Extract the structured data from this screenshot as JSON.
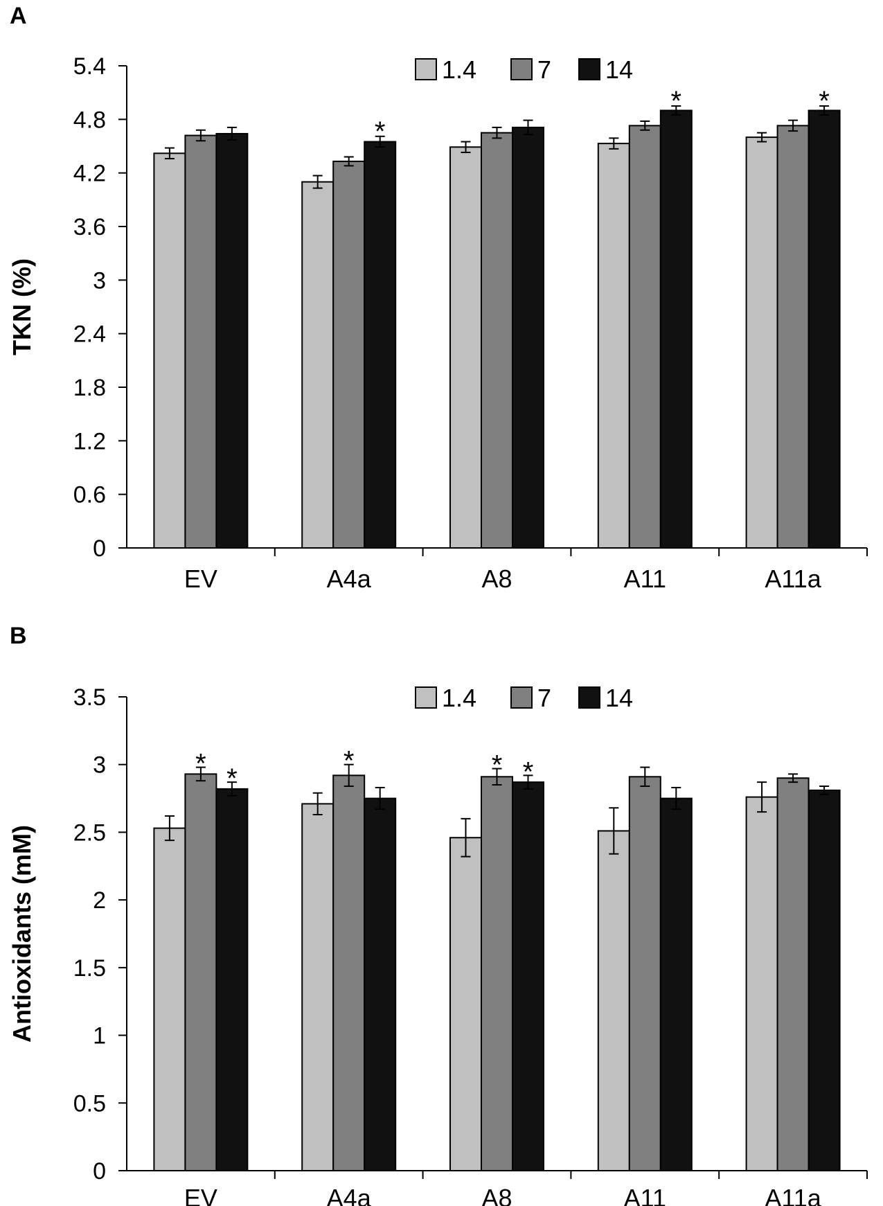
{
  "chart_data": [
    {
      "panel": "A",
      "type": "bar",
      "title": "",
      "xlabel": "",
      "ylabel": "TKN (%)",
      "ylim": [
        0,
        5.4
      ],
      "yticks": [
        "0",
        "0.6",
        "1.2",
        "1.8",
        "2.4",
        "3",
        "3.6",
        "4.2",
        "4.8",
        "5.4"
      ],
      "categories": [
        "EV",
        "A4a",
        "A8",
        "A11",
        "A11a"
      ],
      "legend_position": "top-center",
      "series": [
        {
          "name": "1.4",
          "color": "#c0c0c0",
          "values": [
            4.42,
            4.1,
            4.49,
            4.53,
            4.6
          ],
          "errors": [
            0.06,
            0.07,
            0.06,
            0.06,
            0.05
          ],
          "significant": [
            false,
            false,
            false,
            false,
            false
          ]
        },
        {
          "name": "7",
          "color": "#808080",
          "values": [
            4.62,
            4.33,
            4.65,
            4.73,
            4.73
          ],
          "errors": [
            0.06,
            0.05,
            0.06,
            0.05,
            0.06
          ],
          "significant": [
            false,
            false,
            false,
            false,
            false
          ]
        },
        {
          "name": "14",
          "color": "#111111",
          "values": [
            4.64,
            4.55,
            4.71,
            4.9,
            4.9
          ],
          "errors": [
            0.07,
            0.06,
            0.08,
            0.05,
            0.05
          ],
          "significant": [
            false,
            true,
            false,
            true,
            true
          ]
        }
      ],
      "significance_marker": "*"
    },
    {
      "panel": "B",
      "type": "bar",
      "title": "",
      "xlabel": "",
      "ylabel": "Antioxidants (mM)",
      "ylim": [
        0,
        3.5
      ],
      "yticks": [
        "0",
        "0.5",
        "1",
        "1.5",
        "2",
        "2.5",
        "3",
        "3.5"
      ],
      "categories": [
        "EV",
        "A4a",
        "A8",
        "A11",
        "A11a"
      ],
      "legend_position": "top-center",
      "series": [
        {
          "name": "1.4",
          "color": "#c0c0c0",
          "values": [
            2.53,
            2.71,
            2.46,
            2.51,
            2.76
          ],
          "errors": [
            0.09,
            0.08,
            0.14,
            0.17,
            0.11
          ],
          "significant": [
            false,
            false,
            false,
            false,
            false
          ]
        },
        {
          "name": "7",
          "color": "#808080",
          "values": [
            2.93,
            2.92,
            2.91,
            2.91,
            2.9
          ],
          "errors": [
            0.05,
            0.08,
            0.06,
            0.07,
            0.03
          ],
          "significant": [
            true,
            true,
            true,
            false,
            false
          ]
        },
        {
          "name": "14",
          "color": "#111111",
          "values": [
            2.82,
            2.75,
            2.87,
            2.75,
            2.81
          ],
          "errors": [
            0.05,
            0.08,
            0.05,
            0.08,
            0.03
          ],
          "significant": [
            true,
            false,
            true,
            false,
            false
          ]
        }
      ],
      "significance_marker": "*"
    }
  ]
}
